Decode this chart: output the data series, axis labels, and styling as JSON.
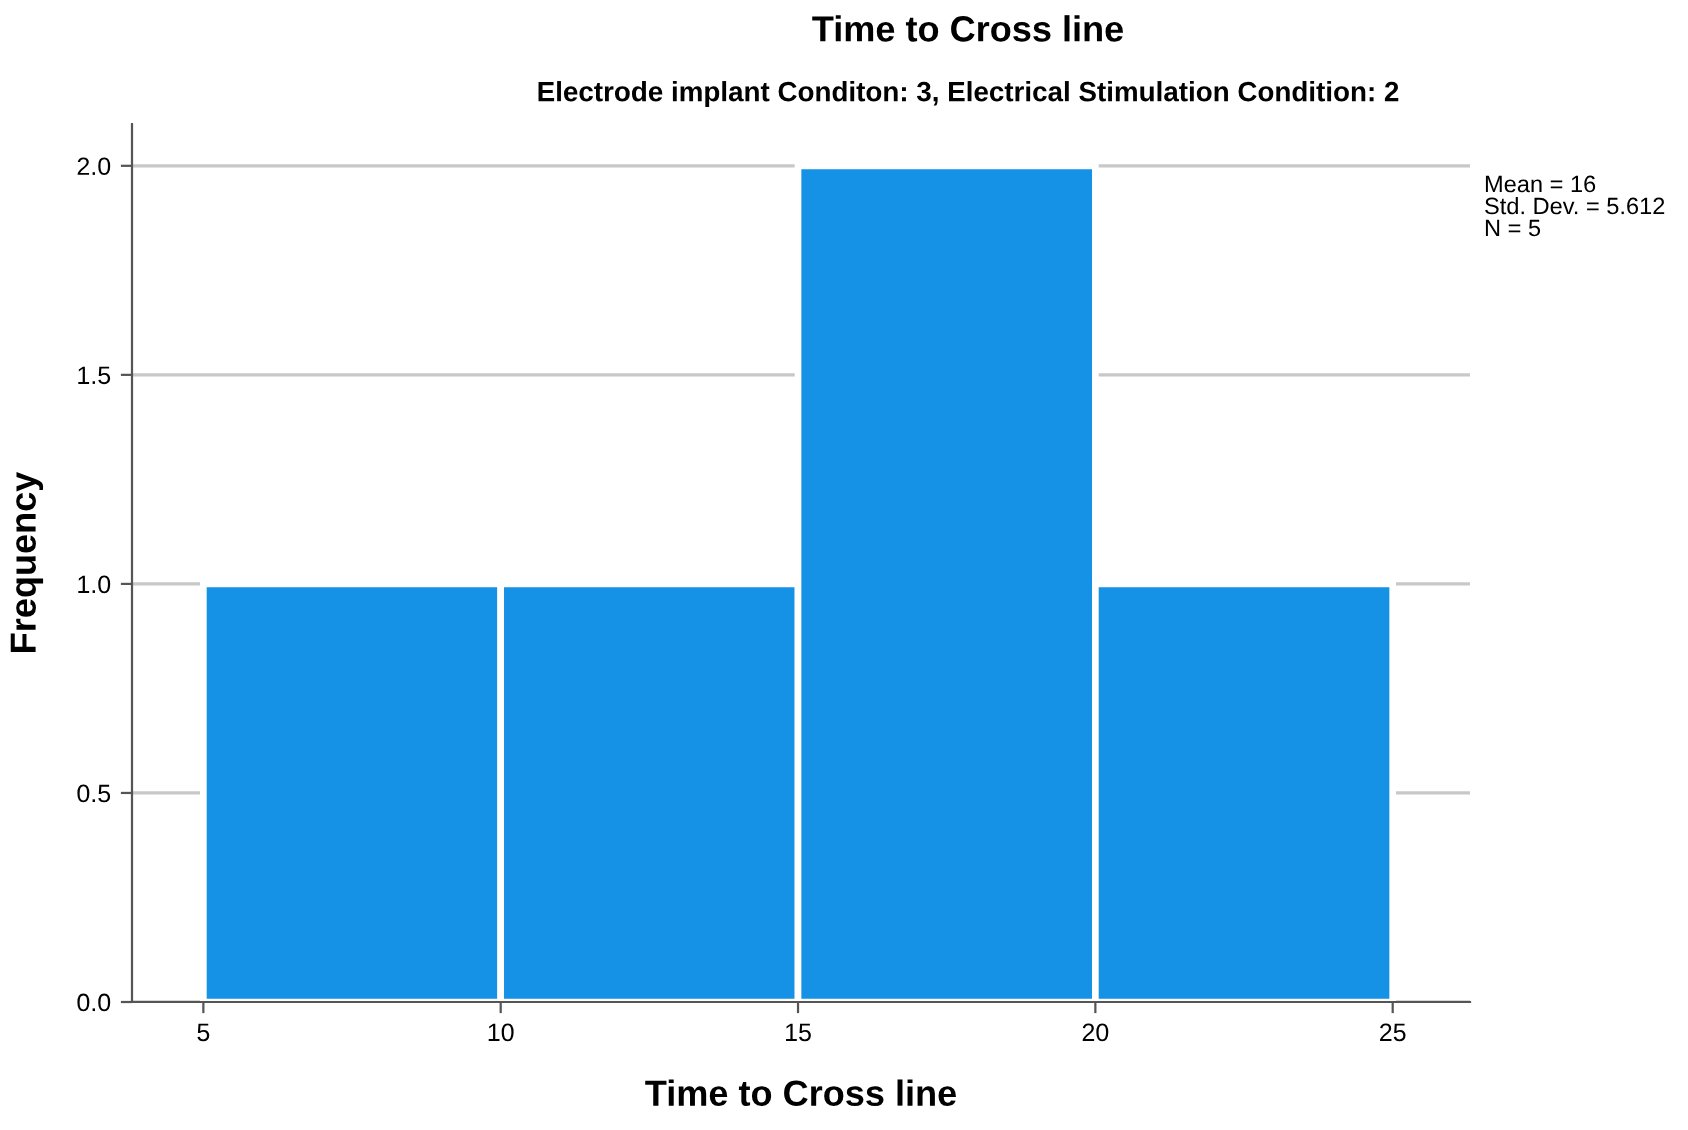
{
  "chart_data": {
    "type": "histogram",
    "title": "Time to Cross line",
    "subtitle": "Electrode implant Conditon: 3, Electrical Stimulation Condition: 2",
    "xlabel": "Time to Cross line",
    "ylabel": "Frequency",
    "bins": [
      5,
      10,
      15,
      20,
      25
    ],
    "values": [
      1,
      1,
      2,
      1
    ],
    "color": "#1591e6",
    "xlim": [
      3.8,
      26.3
    ],
    "ylim": [
      0,
      2.1
    ],
    "xticks": [
      5,
      10,
      15,
      20,
      25
    ],
    "yticks": [
      {
        "value": 0,
        "label": "0.0"
      },
      {
        "value": 0.5,
        "label": "0.5"
      },
      {
        "value": 1,
        "label": "1.0"
      },
      {
        "value": 1.5,
        "label": "1.5"
      },
      {
        "value": 2,
        "label": "2.0"
      }
    ],
    "grid": "y",
    "legend": false,
    "annotations": [
      "Mean = 16",
      "Std. Dev. = 5.612",
      "N = 5"
    ]
  }
}
